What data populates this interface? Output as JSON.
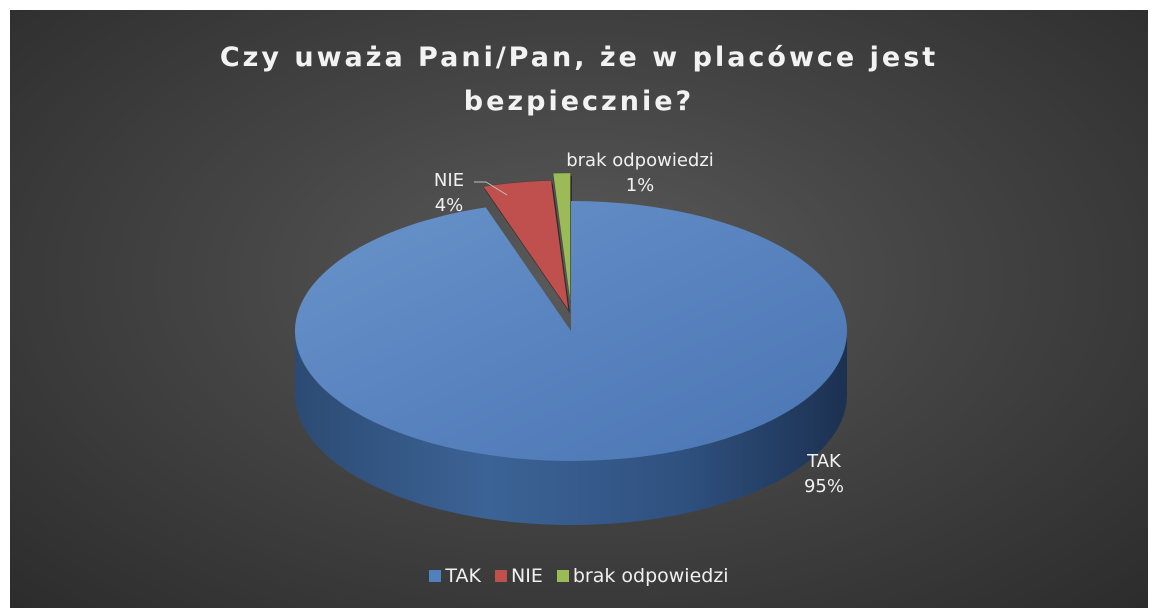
{
  "chart_data": {
    "type": "pie",
    "title": "Czy uważa Pani/Pan, że w placówce jest bezpiecznie?",
    "title_lines": [
      "Czy uważa Pani/Pan, że w placówce jest",
      "bezpiecznie?"
    ],
    "slices": [
      {
        "label": "TAK",
        "value": 95,
        "value_label": "95%",
        "color": "#4f81bd"
      },
      {
        "label": "NIE",
        "value": 4,
        "value_label": "4%",
        "color": "#c0504d"
      },
      {
        "label": "brak odpowiedzi",
        "value": 1,
        "value_label": "1%",
        "color": "#9bbb59"
      }
    ],
    "legend": {
      "placement": "bottom",
      "items": [
        "TAK",
        "NIE",
        "brak odpowiedzi"
      ]
    },
    "style": "3d",
    "background": "#404040"
  }
}
